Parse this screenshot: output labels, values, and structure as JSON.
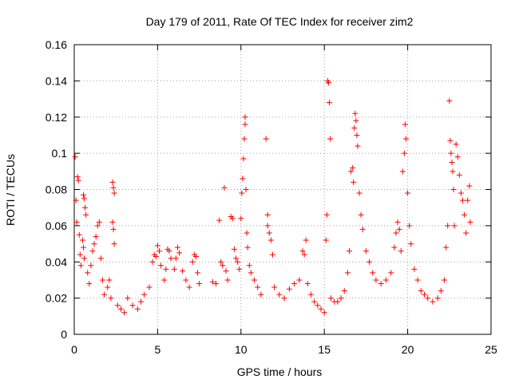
{
  "chart_data": {
    "type": "scatter",
    "title": "Day 179 of 2011, Rate Of TEC Index for receiver zim2",
    "xlabel": "GPS time / hours",
    "ylabel": "ROTI / TECUs",
    "xlim": [
      0,
      25
    ],
    "ylim": [
      0,
      0.16
    ],
    "xticks": [
      0,
      5,
      10,
      15,
      20,
      25
    ],
    "xtick_labels": [
      "0",
      "5",
      "10",
      "15",
      "20",
      "25"
    ],
    "yticks": [
      0,
      0.02,
      0.04,
      0.06,
      0.08,
      0.1,
      0.12,
      0.14,
      0.16
    ],
    "ytick_labels": [
      "0",
      "0.02",
      "0.04",
      "0.06",
      "0.08",
      "0.1",
      "0.12",
      "0.14",
      "0.16"
    ],
    "grid": true,
    "marker": "plus",
    "color": "#ff0000",
    "series": [
      {
        "name": "ROTI",
        "points": [
          [
            0.05,
            0.098
          ],
          [
            0.1,
            0.074
          ],
          [
            0.15,
            0.062
          ],
          [
            0.2,
            0.087
          ],
          [
            0.25,
            0.085
          ],
          [
            0.3,
            0.055
          ],
          [
            0.35,
            0.044
          ],
          [
            0.4,
            0.038
          ],
          [
            0.5,
            0.052
          ],
          [
            0.55,
            0.048
          ],
          [
            0.6,
            0.042
          ],
          [
            0.55,
            0.077
          ],
          [
            0.6,
            0.075
          ],
          [
            0.65,
            0.07
          ],
          [
            0.7,
            0.066
          ],
          [
            0.8,
            0.034
          ],
          [
            0.9,
            0.028
          ],
          [
            1.0,
            0.038
          ],
          [
            1.1,
            0.046
          ],
          [
            1.2,
            0.05
          ],
          [
            1.3,
            0.054
          ],
          [
            1.4,
            0.06
          ],
          [
            1.5,
            0.062
          ],
          [
            1.6,
            0.042
          ],
          [
            1.7,
            0.03
          ],
          [
            1.8,
            0.022
          ],
          [
            2.0,
            0.026
          ],
          [
            2.1,
            0.03
          ],
          [
            2.2,
            0.02
          ],
          [
            2.3,
            0.084
          ],
          [
            2.35,
            0.081
          ],
          [
            2.4,
            0.078
          ],
          [
            2.3,
            0.062
          ],
          [
            2.35,
            0.058
          ],
          [
            2.4,
            0.05
          ],
          [
            2.6,
            0.016
          ],
          [
            2.8,
            0.014
          ],
          [
            3.0,
            0.012
          ],
          [
            3.2,
            0.02
          ],
          [
            3.5,
            0.016
          ],
          [
            3.8,
            0.014
          ],
          [
            4.0,
            0.018
          ],
          [
            4.2,
            0.022
          ],
          [
            4.5,
            0.026
          ],
          [
            4.7,
            0.04
          ],
          [
            4.8,
            0.044
          ],
          [
            4.9,
            0.043
          ],
          [
            5.0,
            0.049
          ],
          [
            5.1,
            0.046
          ],
          [
            5.2,
            0.038
          ],
          [
            5.4,
            0.03
          ],
          [
            5.5,
            0.036
          ],
          [
            5.6,
            0.047
          ],
          [
            5.7,
            0.046
          ],
          [
            5.8,
            0.042
          ],
          [
            6.0,
            0.036
          ],
          [
            6.1,
            0.042
          ],
          [
            6.2,
            0.048
          ],
          [
            6.3,
            0.045
          ],
          [
            6.5,
            0.035
          ],
          [
            6.7,
            0.03
          ],
          [
            6.9,
            0.026
          ],
          [
            7.1,
            0.04
          ],
          [
            7.2,
            0.044
          ],
          [
            7.3,
            0.043
          ],
          [
            7.4,
            0.034
          ],
          [
            7.5,
            0.028
          ],
          [
            8.3,
            0.029
          ],
          [
            8.5,
            0.028
          ],
          [
            8.7,
            0.063
          ],
          [
            8.8,
            0.04
          ],
          [
            8.9,
            0.038
          ],
          [
            9.0,
            0.081
          ],
          [
            9.1,
            0.035
          ],
          [
            9.2,
            0.03
          ],
          [
            9.4,
            0.065
          ],
          [
            9.5,
            0.064
          ],
          [
            9.6,
            0.047
          ],
          [
            9.7,
            0.042
          ],
          [
            9.8,
            0.04
          ],
          [
            9.9,
            0.036
          ],
          [
            10.0,
            0.064
          ],
          [
            10.05,
            0.078
          ],
          [
            10.1,
            0.086
          ],
          [
            10.15,
            0.097
          ],
          [
            10.2,
            0.108
          ],
          [
            10.25,
            0.116
          ],
          [
            10.25,
            0.12
          ],
          [
            10.3,
            0.08
          ],
          [
            10.35,
            0.056
          ],
          [
            10.4,
            0.048
          ],
          [
            10.5,
            0.038
          ],
          [
            10.6,
            0.034
          ],
          [
            10.8,
            0.03
          ],
          [
            11.0,
            0.026
          ],
          [
            11.2,
            0.022
          ],
          [
            11.5,
            0.108
          ],
          [
            11.6,
            0.066
          ],
          [
            11.6,
            0.06
          ],
          [
            11.7,
            0.056
          ],
          [
            11.8,
            0.052
          ],
          [
            11.9,
            0.044
          ],
          [
            12.0,
            0.026
          ],
          [
            12.3,
            0.022
          ],
          [
            12.6,
            0.02
          ],
          [
            12.9,
            0.025
          ],
          [
            13.2,
            0.028
          ],
          [
            13.5,
            0.03
          ],
          [
            13.7,
            0.046
          ],
          [
            13.8,
            0.044
          ],
          [
            13.9,
            0.052
          ],
          [
            14.0,
            0.028
          ],
          [
            14.2,
            0.022
          ],
          [
            14.4,
            0.018
          ],
          [
            14.6,
            0.016
          ],
          [
            14.8,
            0.014
          ],
          [
            15.0,
            0.012
          ],
          [
            15.1,
            0.052
          ],
          [
            15.15,
            0.066
          ],
          [
            15.2,
            0.14
          ],
          [
            15.25,
            0.139
          ],
          [
            15.3,
            0.128
          ],
          [
            15.35,
            0.108
          ],
          [
            15.4,
            0.02
          ],
          [
            15.6,
            0.018
          ],
          [
            15.8,
            0.018
          ],
          [
            16.0,
            0.02
          ],
          [
            16.2,
            0.024
          ],
          [
            16.4,
            0.034
          ],
          [
            16.5,
            0.046
          ],
          [
            16.6,
            0.09
          ],
          [
            16.7,
            0.092
          ],
          [
            16.75,
            0.084
          ],
          [
            16.8,
            0.114
          ],
          [
            16.85,
            0.122
          ],
          [
            16.9,
            0.118
          ],
          [
            16.95,
            0.11
          ],
          [
            17.0,
            0.104
          ],
          [
            17.1,
            0.078
          ],
          [
            17.2,
            0.066
          ],
          [
            17.3,
            0.058
          ],
          [
            17.5,
            0.046
          ],
          [
            17.7,
            0.04
          ],
          [
            17.9,
            0.034
          ],
          [
            18.1,
            0.03
          ],
          [
            18.4,
            0.028
          ],
          [
            18.7,
            0.03
          ],
          [
            19.0,
            0.034
          ],
          [
            19.2,
            0.048
          ],
          [
            19.3,
            0.056
          ],
          [
            19.4,
            0.062
          ],
          [
            19.5,
            0.058
          ],
          [
            19.6,
            0.046
          ],
          [
            19.7,
            0.09
          ],
          [
            19.8,
            0.1
          ],
          [
            19.85,
            0.116
          ],
          [
            19.9,
            0.108
          ],
          [
            20.0,
            0.078
          ],
          [
            20.1,
            0.06
          ],
          [
            20.2,
            0.05
          ],
          [
            20.4,
            0.036
          ],
          [
            20.6,
            0.03
          ],
          [
            20.8,
            0.024
          ],
          [
            21.0,
            0.022
          ],
          [
            21.2,
            0.02
          ],
          [
            21.5,
            0.018
          ],
          [
            21.8,
            0.02
          ],
          [
            22.0,
            0.024
          ],
          [
            22.2,
            0.03
          ],
          [
            22.3,
            0.048
          ],
          [
            22.4,
            0.06
          ],
          [
            22.5,
            0.129
          ],
          [
            22.55,
            0.107
          ],
          [
            22.6,
            0.1
          ],
          [
            22.65,
            0.095
          ],
          [
            22.7,
            0.09
          ],
          [
            22.75,
            0.08
          ],
          [
            22.8,
            0.06
          ],
          [
            22.9,
            0.105
          ],
          [
            23.0,
            0.098
          ],
          [
            23.1,
            0.088
          ],
          [
            23.2,
            0.078
          ],
          [
            23.3,
            0.074
          ],
          [
            23.4,
            0.066
          ],
          [
            23.5,
            0.056
          ],
          [
            23.6,
            0.074
          ],
          [
            23.7,
            0.082
          ],
          [
            23.75,
            0.062
          ]
        ]
      }
    ]
  }
}
